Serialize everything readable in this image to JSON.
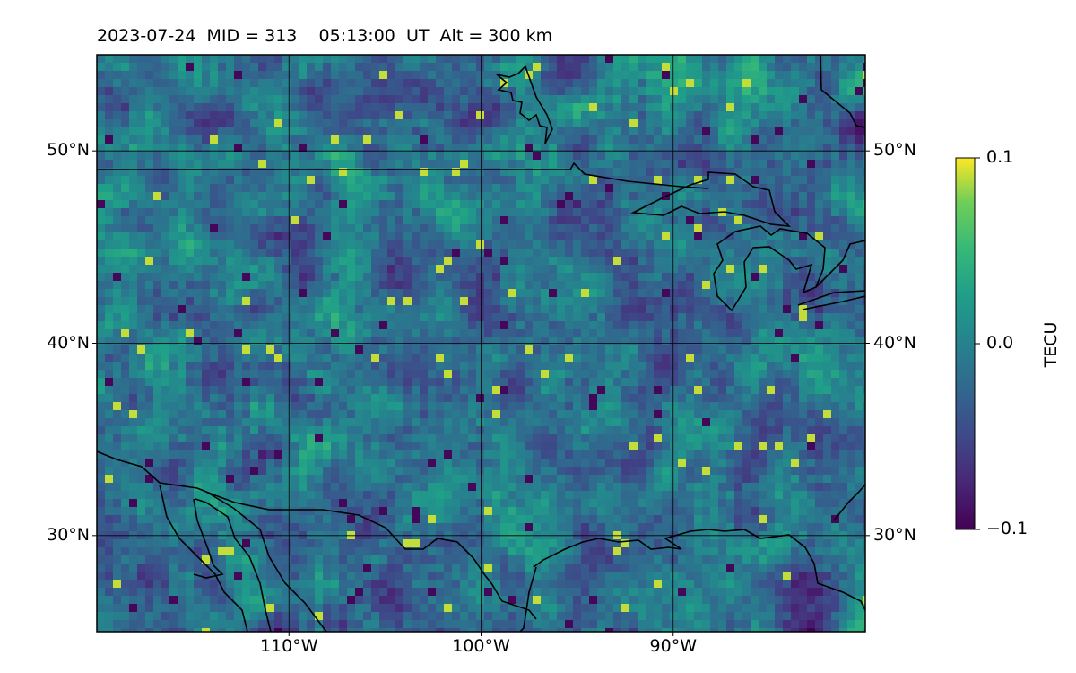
{
  "title": "2023-07-24  MID = 313    05:13:00  UT  Alt = 300 km",
  "map": {
    "lon_range": [
      -120,
      -80
    ],
    "lat_range": [
      25,
      55
    ],
    "lon_ticks": [
      {
        "value": -110,
        "label": "110°W"
      },
      {
        "value": -100,
        "label": "100°W"
      },
      {
        "value": -90,
        "label": "90°W"
      }
    ],
    "lat_ticks": [
      {
        "value": 50,
        "label": "50°N"
      },
      {
        "value": 40,
        "label": "40°N"
      },
      {
        "value": 30,
        "label": "30°N"
      }
    ],
    "field": "TEC anomaly (pixelated grid)",
    "colormap": "viridis"
  },
  "colorbar": {
    "label": "TECU",
    "min": -0.1,
    "max": 0.1,
    "ticks": [
      {
        "value": 0.1,
        "label": "0.1"
      },
      {
        "value": 0.0,
        "label": "0.0"
      },
      {
        "value": -0.1,
        "label": "−0.1"
      }
    ]
  },
  "colors": {
    "viridis_low": "#440154",
    "viridis_mid": "#21918c",
    "viridis_high": "#fde725",
    "coast": "#000000"
  }
}
